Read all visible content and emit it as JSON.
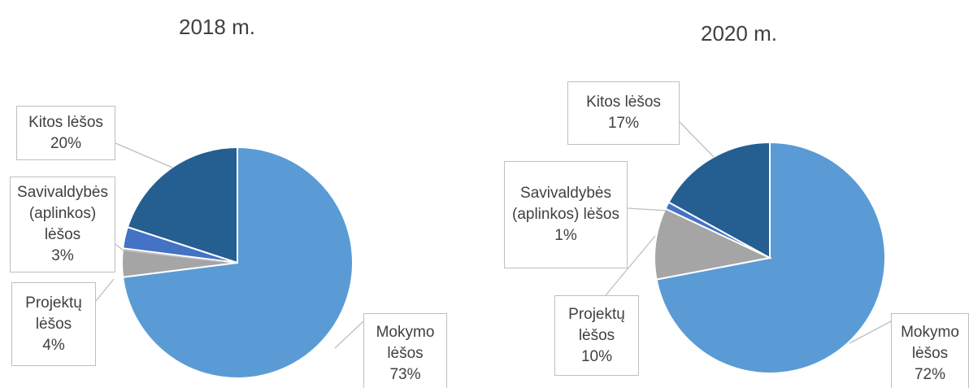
{
  "chart_data": [
    {
      "type": "pie",
      "title": "2018 m.",
      "categories": [
        "Mokymo lėšos",
        "Projektų lėšos",
        "Savivaldybės (aplinkos) lėšos",
        "Kitos lėšos"
      ],
      "values": [
        73,
        4,
        3,
        20
      ],
      "value_labels": [
        "73%",
        "4%",
        "3%",
        "20%"
      ],
      "colors": [
        "#5b9bd5",
        "#a5a5a5",
        "#4472c4",
        "#255e91"
      ]
    },
    {
      "type": "pie",
      "title": "2020 m.",
      "categories": [
        "Mokymo lėšos",
        "Projektų lėšos",
        "Savivaldybės (aplinkos) lėšos",
        "Kitos lėšos"
      ],
      "values": [
        72,
        10,
        1,
        17
      ],
      "value_labels": [
        "72%",
        "10%",
        "1%",
        "17%"
      ],
      "colors": [
        "#5b9bd5",
        "#a5a5a5",
        "#4472c4",
        "#255e91"
      ]
    }
  ]
}
